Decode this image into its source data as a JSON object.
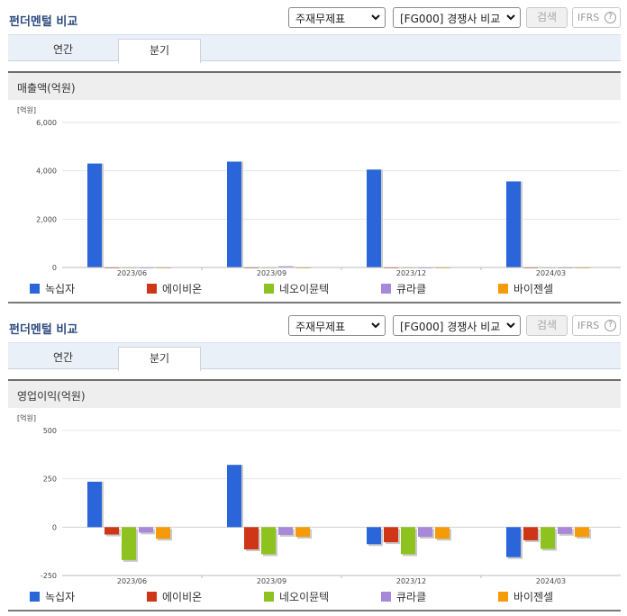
{
  "colors": {
    "title": "#2c4a7e",
    "series": [
      "#2a65d9",
      "#cf3517",
      "#8ec21f",
      "#a888d8",
      "#f59b0a"
    ]
  },
  "sections": [
    {
      "title": "펀더멘털 비교",
      "select_statement": "주재무제표",
      "select_group": "[FG000] 경쟁사 비교",
      "search_label": "검색",
      "ifrs_label": "IFRS",
      "ifrs_help": "?",
      "tab_annual": "연간",
      "tab_quarter": "분기",
      "chart_title": "매출액(억원)",
      "unit_label": "[억원]",
      "legend": [
        "녹십자",
        "에이비온",
        "네오이뮨텍",
        "큐라클",
        "바이젠셀"
      ]
    },
    {
      "title": "펀더멘털 비교",
      "select_statement": "주재무제표",
      "select_group": "[FG000] 경쟁사 비교",
      "search_label": "검색",
      "ifrs_label": "IFRS",
      "ifrs_help": "?",
      "tab_annual": "연간",
      "tab_quarter": "분기",
      "chart_title": "영업이익(억원)",
      "unit_label": "[억원]",
      "legend": [
        "녹십자",
        "에이비온",
        "네오이뮨텍",
        "큐라클",
        "바이젠셀"
      ]
    }
  ],
  "chart_data": [
    {
      "type": "bar",
      "title": "매출액(억원)",
      "ylabel": "[억원]",
      "categories": [
        "2023/06",
        "2023/09",
        "2023/12",
        "2024/03"
      ],
      "ylim": [
        0,
        6000
      ],
      "yticks": [
        0,
        2000,
        4000,
        6000
      ],
      "ytick_labels": [
        "0",
        "2,000",
        "4,000",
        "6,000"
      ],
      "grid": true,
      "legend_position": "bottom",
      "series": [
        {
          "name": "녹십자",
          "values": [
            4300,
            4380,
            4050,
            3560
          ]
        },
        {
          "name": "에이비온",
          "values": [
            5,
            5,
            5,
            5
          ]
        },
        {
          "name": "네오이뮨텍",
          "values": [
            10,
            10,
            10,
            10
          ]
        },
        {
          "name": "큐라클",
          "values": [
            5,
            50,
            5,
            5
          ]
        },
        {
          "name": "바이젠셀",
          "values": [
            5,
            5,
            5,
            5
          ]
        }
      ]
    },
    {
      "type": "bar",
      "title": "영업이익(억원)",
      "ylabel": "[억원]",
      "categories": [
        "2023/06",
        "2023/09",
        "2023/12",
        "2024/03"
      ],
      "ylim": [
        -250,
        500
      ],
      "yticks": [
        -250,
        0,
        250,
        500
      ],
      "ytick_labels": [
        "-250",
        "0",
        "250",
        "500"
      ],
      "grid": true,
      "legend_position": "bottom",
      "series": [
        {
          "name": "녹십자",
          "values": [
            235,
            322,
            -88,
            -155
          ]
        },
        {
          "name": "에이비온",
          "values": [
            -38,
            -115,
            -78,
            -68
          ]
        },
        {
          "name": "네오이뮨텍",
          "values": [
            -170,
            -140,
            -140,
            -112
          ]
        },
        {
          "name": "큐라클",
          "values": [
            -28,
            -40,
            -50,
            -35
          ]
        },
        {
          "name": "바이젠셀",
          "values": [
            -60,
            -50,
            -60,
            -50
          ]
        }
      ]
    }
  ]
}
